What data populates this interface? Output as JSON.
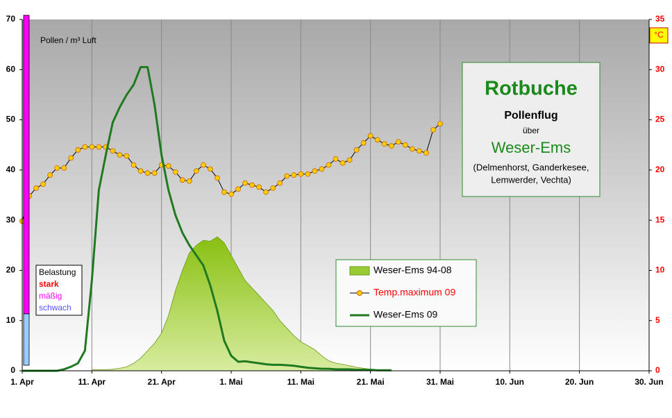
{
  "chart_data": {
    "type": "line",
    "y_label": "Pollen / m³ Luft",
    "y2_label": "°C",
    "xlim": [
      0,
      90
    ],
    "xticks": [
      {
        "value": 0,
        "label": "1. Apr"
      },
      {
        "value": 10,
        "label": "11. Apr"
      },
      {
        "value": 20,
        "label": "21. Apr"
      },
      {
        "value": 30,
        "label": "1. Mai"
      },
      {
        "value": 40,
        "label": "11. Mai"
      },
      {
        "value": 50,
        "label": "21. Mai"
      },
      {
        "value": 60,
        "label": "31. Mai"
      },
      {
        "value": 70,
        "label": "10. Jun"
      },
      {
        "value": 80,
        "label": "20. Jun"
      },
      {
        "value": 90,
        "label": "30. Jun"
      }
    ],
    "ylim": [
      0,
      70
    ],
    "yticks": [
      0,
      10,
      20,
      30,
      40,
      50,
      60,
      70
    ],
    "y2lim": [
      0,
      35
    ],
    "y2ticks": [
      0,
      5,
      10,
      15,
      20,
      25,
      30,
      35
    ],
    "y2_color": "#ff0000",
    "grid": true,
    "series": [
      {
        "name": "Weser-Ems 94-08",
        "type": "area",
        "color": "#99cc33",
        "label_color": "#000000",
        "x": [
          10,
          11,
          12,
          13,
          14,
          15,
          16,
          17,
          18,
          19,
          20,
          21,
          22,
          23,
          24,
          25,
          26,
          27,
          28,
          29,
          30,
          31,
          32,
          33,
          34,
          35,
          36,
          37,
          38,
          39,
          40,
          41,
          42,
          43,
          44,
          45,
          46,
          47,
          48,
          49,
          50,
          51,
          52,
          53
        ],
        "values": [
          0.2,
          0.2,
          0.2,
          0.3,
          0.5,
          0.8,
          1.5,
          2.5,
          4,
          5.5,
          7.5,
          11,
          16,
          20,
          23.5,
          25,
          26,
          25.8,
          26.7,
          25.5,
          23,
          20.5,
          18,
          16.5,
          15,
          13.5,
          12,
          10,
          8.5,
          7,
          5.8,
          5,
          4.2,
          3,
          2,
          1.5,
          1.3,
          1,
          0.7,
          0.5,
          0.3,
          0.2,
          0.1,
          0.1
        ]
      },
      {
        "name": "Temp.maximum 09",
        "type": "line",
        "axis": "y2",
        "color": "#000000",
        "marker_color": "#ffcc00",
        "label_color": "#ff0000",
        "x": [
          0,
          1,
          2,
          3,
          4,
          5,
          6,
          7,
          8,
          9,
          10,
          11,
          12,
          13,
          14,
          15,
          16,
          17,
          18,
          19,
          20,
          21,
          22,
          23,
          24,
          25,
          26,
          27,
          28,
          29,
          30,
          31,
          32,
          33,
          34,
          35,
          36,
          37,
          38,
          39,
          40,
          41,
          42,
          43,
          44,
          45,
          46,
          47,
          48,
          49,
          50,
          51,
          52,
          53,
          54,
          55,
          56,
          57,
          58,
          59,
          60
        ],
        "values": [
          14.9,
          17.4,
          18.2,
          18.6,
          19.5,
          20.2,
          20.2,
          21.2,
          22.0,
          22.3,
          22.3,
          22.3,
          22.3,
          21.9,
          21.5,
          21.4,
          20.5,
          19.9,
          19.7,
          19.7,
          20.5,
          20.4,
          19.8,
          19.0,
          18.9,
          19.9,
          20.5,
          20.1,
          19.2,
          17.8,
          17.6,
          18.1,
          18.7,
          18.5,
          18.3,
          17.8,
          18.2,
          18.7,
          19.4,
          19.5,
          19.6,
          19.6,
          19.9,
          20.1,
          20.5,
          21.1,
          20.7,
          21.0,
          22.0,
          22.7,
          23.4,
          23.0,
          22.6,
          22.4,
          22.8,
          22.5,
          22.1,
          21.9,
          21.7,
          24.0,
          24.6
        ]
      },
      {
        "name": "Weser-Ems 09",
        "type": "line",
        "color": "#1f7a1f",
        "label_color": "#000000",
        "x": [
          0,
          1,
          2,
          3,
          4,
          5,
          6,
          7,
          8,
          9,
          10,
          11,
          12,
          13,
          14,
          15,
          16,
          17,
          18,
          19,
          20,
          21,
          22,
          23,
          24,
          25,
          26,
          27,
          28,
          29,
          30,
          31,
          32,
          33,
          34,
          35,
          36,
          37,
          38,
          39,
          40,
          41,
          42,
          43,
          44,
          45,
          46,
          47,
          48,
          49,
          50,
          51,
          52,
          53
        ],
        "values": [
          0,
          0,
          0,
          0,
          0,
          0,
          0.3,
          0.8,
          1.5,
          4,
          18,
          36,
          43,
          49.5,
          52.5,
          55,
          57,
          60.5,
          60.5,
          53,
          43,
          36,
          31,
          27.5,
          25,
          23,
          21,
          17,
          12,
          6,
          3,
          1.8,
          1.9,
          1.7,
          1.5,
          1.3,
          1.2,
          1.2,
          1.1,
          1,
          0.8,
          0.6,
          0.5,
          0.4,
          0.4,
          0.3,
          0.3,
          0.3,
          0.2,
          0.2,
          0.2,
          0.1,
          0.1,
          0.1
        ]
      }
    ],
    "info_box": {
      "title": "Rotbuche",
      "subtitle": "Pollenflug",
      "connector": "über",
      "region": "Weser-Ems",
      "places_1": "(Delmenhorst, Ganderkesee,",
      "places_2": "Lemwerder, Vechta)"
    },
    "scale_box": {
      "title": "Belastung",
      "high": "stark",
      "medium": "mäßig",
      "low": "schwach"
    }
  }
}
